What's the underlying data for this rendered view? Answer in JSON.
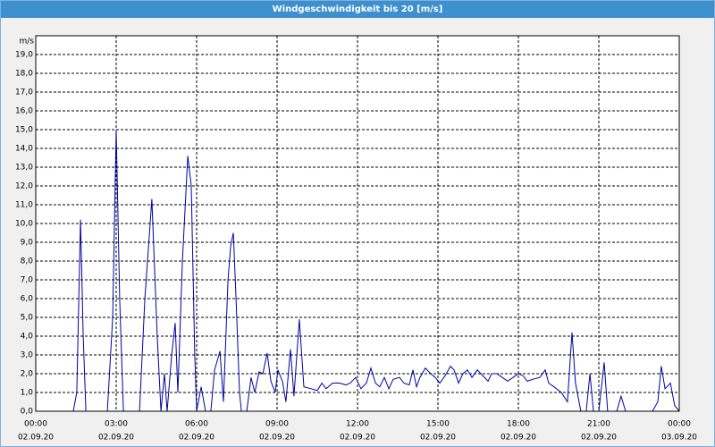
{
  "chart_data": {
    "type": "line",
    "title": "Windgeschwindigkeit bis 20 [m/s]",
    "y_label": "m/s",
    "color": "#0000a0",
    "grid": true,
    "xlim": [
      0,
      24
    ],
    "ylim": [
      0,
      20
    ],
    "xticks": [
      {
        "value": 0,
        "label": "00:00",
        "date": "02.09.20"
      },
      {
        "value": 3,
        "label": "03:00",
        "date": "02.09.20"
      },
      {
        "value": 6,
        "label": "06:00",
        "date": "02.09.20"
      },
      {
        "value": 9,
        "label": "09:00",
        "date": "02.09.20"
      },
      {
        "value": 12,
        "label": "12:00",
        "date": "02.09.20"
      },
      {
        "value": 15,
        "label": "15:00",
        "date": "02.09.20"
      },
      {
        "value": 18,
        "label": "18:00",
        "date": "02.09.20"
      },
      {
        "value": 21,
        "label": "21:00",
        "date": "02.09.20"
      },
      {
        "value": 24,
        "label": "00:00",
        "date": "03.09.20"
      }
    ],
    "yticks": [
      {
        "value": 0,
        "label": "0,0"
      },
      {
        "value": 1,
        "label": "1,0"
      },
      {
        "value": 2,
        "label": "2,0"
      },
      {
        "value": 3,
        "label": "3,0"
      },
      {
        "value": 4,
        "label": "4,0"
      },
      {
        "value": 5,
        "label": "5,0"
      },
      {
        "value": 6,
        "label": "6,0"
      },
      {
        "value": 7,
        "label": "7,0"
      },
      {
        "value": 8,
        "label": "8,0"
      },
      {
        "value": 9,
        "label": "9,0"
      },
      {
        "value": 10,
        "label": "10,0"
      },
      {
        "value": 11,
        "label": "11,0"
      },
      {
        "value": 12,
        "label": "12,0"
      },
      {
        "value": 13,
        "label": "13,0"
      },
      {
        "value": 14,
        "label": "14,0"
      },
      {
        "value": 15,
        "label": "15,0"
      },
      {
        "value": 16,
        "label": "16,0"
      },
      {
        "value": 17,
        "label": "17,0"
      },
      {
        "value": 18,
        "label": "18,0"
      },
      {
        "value": 19,
        "label": "19,0"
      }
    ],
    "x": [
      0,
      1.4,
      1.53,
      1.67,
      1.77,
      1.87,
      2.67,
      2.87,
      3.0,
      3.13,
      3.27,
      3.87,
      4.07,
      4.33,
      4.53,
      4.67,
      4.8,
      4.9,
      5.07,
      5.2,
      5.3,
      5.47,
      5.67,
      5.8,
      5.93,
      6.0,
      6.17,
      6.33,
      6.53,
      6.67,
      6.87,
      7.0,
      7.17,
      7.27,
      7.37,
      7.47,
      7.6,
      7.67,
      7.87,
      8.03,
      8.17,
      8.33,
      8.47,
      8.63,
      8.77,
      8.93,
      9.03,
      9.2,
      9.33,
      9.5,
      9.63,
      9.83,
      10.0,
      10.27,
      10.5,
      10.67,
      10.83,
      11.07,
      11.33,
      11.57,
      11.73,
      11.93,
      12.13,
      12.33,
      12.5,
      12.67,
      12.83,
      13.0,
      13.17,
      13.33,
      13.57,
      13.73,
      13.93,
      14.07,
      14.2,
      14.33,
      14.53,
      14.73,
      14.9,
      15.07,
      15.27,
      15.47,
      15.6,
      15.77,
      15.93,
      16.1,
      16.27,
      16.47,
      16.67,
      16.87,
      17.0,
      17.2,
      17.4,
      17.6,
      17.8,
      18.0,
      18.17,
      18.33,
      18.53,
      18.8,
      19.0,
      19.13,
      19.33,
      19.6,
      19.83,
      20.0,
      20.13,
      20.33,
      20.53,
      20.67,
      20.8,
      21.0,
      21.2,
      21.33,
      21.67,
      21.83,
      22.0,
      23.0,
      23.2,
      23.33,
      23.47,
      23.67,
      23.83,
      24.0
    ],
    "values": [
      0,
      0,
      1.0,
      10.2,
      4.0,
      0,
      0,
      5,
      15.0,
      6,
      0,
      0,
      6,
      11.3,
      4,
      0,
      2,
      0,
      3,
      4.7,
      1,
      8,
      13.6,
      12,
      3,
      0,
      1.3,
      0,
      0,
      2.2,
      3.2,
      0.5,
      7,
      8.8,
      9.5,
      6,
      1,
      0,
      0,
      1.8,
      1.0,
      2.1,
      2.0,
      3.1,
      1.6,
      1.0,
      2.2,
      1.6,
      0.5,
      3.3,
      0.8,
      4.9,
      1.3,
      1.2,
      1.1,
      1.5,
      1.2,
      1.5,
      1.5,
      1.4,
      1.5,
      1.8,
      1.2,
      1.5,
      2.3,
      1.5,
      1.3,
      1.8,
      1.2,
      1.7,
      1.8,
      1.5,
      1.4,
      2.2,
      1.3,
      1.8,
      2.3,
      2.0,
      1.8,
      1.5,
      1.9,
      2.4,
      2.2,
      1.5,
      2.0,
      2.2,
      1.8,
      2.2,
      1.9,
      1.6,
      2.0,
      2.0,
      1.8,
      1.6,
      1.8,
      2.0,
      1.9,
      1.6,
      1.7,
      1.8,
      2.2,
      1.5,
      1.3,
      1.0,
      0.5,
      4.2,
      1.5,
      0,
      0,
      2.0,
      0,
      0,
      2.6,
      0,
      0,
      0.8,
      0,
      0,
      0.5,
      2.4,
      1.2,
      1.5,
      0.3,
      0
    ]
  }
}
